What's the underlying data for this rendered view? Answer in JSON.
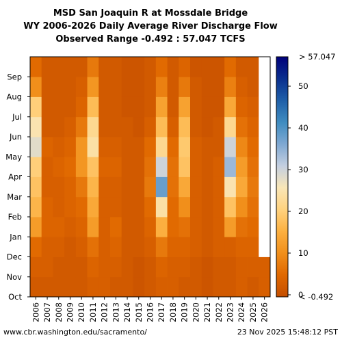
{
  "chart_data": {
    "type": "heatmap",
    "title": "MSD San Joaquin R at Mossdale Bridge",
    "subtitle": "WY 2006-2026 Daily Average River Discharge Flow",
    "range_label": "Observed Range -0.492 : 57.047 TCFS",
    "x_categories": [
      "2006",
      "2007",
      "2008",
      "2009",
      "2010",
      "2011",
      "2012",
      "2013",
      "2014",
      "2015",
      "2016",
      "2017",
      "2018",
      "2019",
      "2020",
      "2021",
      "2022",
      "2023",
      "2024",
      "2025",
      "2026"
    ],
    "y_categories": [
      "Oct",
      "Nov",
      "Dec",
      "Jan",
      "Feb",
      "Mar",
      "Apr",
      "May",
      "Jun",
      "Jul",
      "Aug",
      "Sep"
    ],
    "y_order": "Oct at bottom, Sep at top",
    "monthly_flow_tcfs": {
      "2006": [
        2,
        3,
        5,
        12,
        16,
        18,
        20,
        28,
        25,
        20,
        10,
        5
      ],
      "2007": [
        2,
        3,
        3,
        4,
        4,
        3,
        3,
        4,
        2,
        2,
        2,
        2
      ],
      "2008": [
        2,
        2,
        3,
        4,
        3,
        3,
        4,
        3,
        2,
        2,
        2,
        2
      ],
      "2009": [
        2,
        2,
        2,
        3,
        4,
        4,
        5,
        4,
        3,
        2,
        2,
        2
      ],
      "2010": [
        2,
        2,
        3,
        4,
        5,
        7,
        11,
        11,
        7,
        4,
        3,
        2
      ],
      "2011": [
        3,
        4,
        6,
        12,
        14,
        16,
        18,
        24,
        22,
        17,
        11,
        7
      ],
      "2012": [
        3,
        3,
        3,
        3,
        3,
        3,
        4,
        3,
        2,
        2,
        2,
        2
      ],
      "2013": [
        2,
        3,
        4,
        5,
        3,
        3,
        4,
        3,
        2,
        2,
        2,
        2
      ],
      "2014": [
        2,
        2,
        2,
        2,
        2,
        2,
        2,
        2,
        2,
        1,
        1,
        1
      ],
      "2015": [
        1,
        1,
        2,
        2,
        2,
        2,
        2,
        2,
        1,
        1,
        1,
        1
      ],
      "2016": [
        2,
        2,
        3,
        4,
        5,
        7,
        6,
        5,
        3,
        2,
        2,
        2
      ],
      "2017": [
        3,
        4,
        7,
        15,
        24,
        38,
        30,
        22,
        17,
        13,
        8,
        5
      ],
      "2018": [
        3,
        3,
        4,
        5,
        5,
        6,
        6,
        5,
        3,
        2,
        2,
        2
      ],
      "2019": [
        2,
        3,
        4,
        6,
        10,
        14,
        18,
        19,
        17,
        13,
        7,
        4
      ],
      "2020": [
        2,
        2,
        3,
        3,
        3,
        3,
        3,
        3,
        2,
        2,
        2,
        1
      ],
      "2021": [
        1,
        1,
        2,
        2,
        2,
        2,
        2,
        2,
        1,
        1,
        1,
        1
      ],
      "2022": [
        2,
        2,
        3,
        3,
        3,
        3,
        3,
        2,
        2,
        1,
        1,
        1
      ],
      "2023": [
        2,
        2,
        3,
        12,
        18,
        25,
        34,
        30,
        22,
        14,
        8,
        5
      ],
      "2024": [
        3,
        3,
        4,
        6,
        10,
        14,
        12,
        9,
        6,
        4,
        3,
        2
      ],
      "2025": [
        2,
        3,
        4,
        5,
        6,
        7,
        6,
        5,
        4,
        3,
        2,
        2
      ],
      "2026": [
        3,
        3
      ]
    },
    "vmin": -0.492,
    "vmax": 57.047,
    "colorbar_ticks": [
      0,
      10,
      20,
      30,
      40,
      50
    ],
    "colorbar_top_label": "> 57.047",
    "colorbar_bottom_label": "< -0.492",
    "colormap": [
      "#c44e00",
      "#e06800",
      "#f18f1b",
      "#fcb040",
      "#ffd27f",
      "#f9e6b7",
      "#c4cfe0",
      "#7fa8d2",
      "#3f8cc0",
      "#1f5fa8",
      "#0a2f8e",
      "#00007a"
    ],
    "missing_color": "#ffffff"
  },
  "footer": {
    "source": "www.cbr.washington.edu/sacramento/",
    "timestamp": "23 Nov 2025 15:48:12 PST"
  }
}
